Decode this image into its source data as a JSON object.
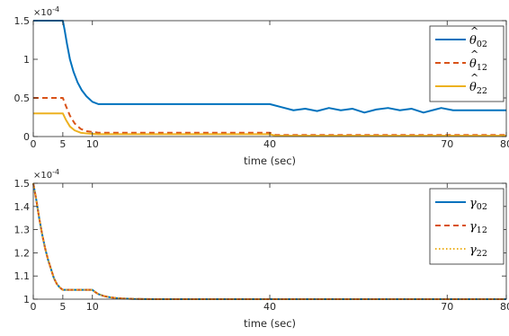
{
  "chart_data": [
    {
      "type": "line",
      "title": "",
      "xlabel": "time (sec)",
      "ylabel": "",
      "xlim": [
        0,
        80
      ],
      "ylim": [
        0,
        1.5
      ],
      "y_multiplier": "×10",
      "y_exponent": "-4",
      "xticks": [
        "0",
        "5",
        "10",
        "40",
        "70",
        "80"
      ],
      "xtick_values": [
        0,
        5,
        10,
        40,
        70,
        80
      ],
      "yticks": [
        "0",
        "0.5",
        "1",
        "1.5"
      ],
      "ytick_values": [
        0,
        0.5,
        1,
        1.5
      ],
      "grid": false,
      "legend_position": "top-right",
      "series": [
        {
          "name_base": "θ",
          "name_hat": "^",
          "name_sub": "02",
          "color": "#0072BD",
          "style": "solid",
          "x": [
            0,
            5,
            5.3,
            5.7,
            6.2,
            6.8,
            7.5,
            8.2,
            9,
            10,
            11,
            40,
            42,
            44,
            46,
            48,
            50,
            52,
            54,
            56,
            58,
            60,
            62,
            64,
            66,
            68,
            69,
            71,
            80
          ],
          "y": [
            1.5,
            1.5,
            1.38,
            1.2,
            1.0,
            0.84,
            0.7,
            0.6,
            0.52,
            0.45,
            0.42,
            0.42,
            0.38,
            0.34,
            0.36,
            0.33,
            0.37,
            0.34,
            0.36,
            0.31,
            0.35,
            0.37,
            0.34,
            0.36,
            0.31,
            0.35,
            0.37,
            0.34,
            0.34
          ]
        },
        {
          "name_base": "θ",
          "name_hat": "^",
          "name_sub": "12",
          "color": "#D95319",
          "style": "dashed",
          "x": [
            0,
            5,
            5.5,
            6.2,
            7,
            8,
            9,
            10,
            11,
            40,
            41,
            80
          ],
          "y": [
            0.5,
            0.5,
            0.4,
            0.27,
            0.17,
            0.1,
            0.07,
            0.06,
            0.05,
            0.05,
            0.02,
            0.02
          ]
        },
        {
          "name_base": "θ",
          "name_hat": "^",
          "name_sub": "22",
          "color": "#EDB120",
          "style": "solid",
          "x": [
            0,
            5,
            5.5,
            6.2,
            7,
            8,
            9,
            10,
            11,
            40,
            41,
            80
          ],
          "y": [
            0.3,
            0.3,
            0.22,
            0.13,
            0.08,
            0.05,
            0.04,
            0.035,
            0.03,
            0.03,
            0.01,
            0.01
          ]
        }
      ]
    },
    {
      "type": "line",
      "title": "",
      "xlabel": "time (sec)",
      "ylabel": "",
      "xlim": [
        0,
        80
      ],
      "ylim": [
        1.0,
        1.5
      ],
      "y_multiplier": "×10",
      "y_exponent": "-4",
      "xticks": [
        "0",
        "5",
        "10",
        "40",
        "70",
        "80"
      ],
      "xtick_values": [
        0,
        5,
        10,
        40,
        70,
        80
      ],
      "yticks": [
        "1",
        "1.1",
        "1.2",
        "1.3",
        "1.4",
        "1.5"
      ],
      "ytick_values": [
        1.0,
        1.1,
        1.2,
        1.3,
        1.4,
        1.5
      ],
      "grid": false,
      "legend_position": "top-right",
      "series": [
        {
          "name_base": "γ",
          "name_hat": "",
          "name_sub": "02",
          "color": "#0072BD",
          "style": "solid",
          "x": [
            0,
            0.5,
            1,
            1.5,
            2,
            2.5,
            3,
            3.5,
            4,
            4.5,
            5,
            10,
            10.5,
            11,
            12,
            13,
            14,
            15,
            17,
            20,
            25,
            80
          ],
          "y": [
            1.5,
            1.43,
            1.35,
            1.28,
            1.22,
            1.17,
            1.13,
            1.09,
            1.065,
            1.05,
            1.04,
            1.04,
            1.03,
            1.022,
            1.013,
            1.008,
            1.005,
            1.003,
            1.001,
            1.0,
            1.0,
            1.0
          ]
        },
        {
          "name_base": "γ",
          "name_hat": "",
          "name_sub": "12",
          "color": "#D95319",
          "style": "dashed",
          "x": [
            0,
            0.5,
            1,
            1.5,
            2,
            2.5,
            3,
            3.5,
            4,
            4.5,
            5,
            10,
            10.5,
            11,
            12,
            13,
            14,
            15,
            17,
            20,
            25,
            80
          ],
          "y": [
            1.5,
            1.43,
            1.35,
            1.28,
            1.22,
            1.17,
            1.13,
            1.09,
            1.065,
            1.05,
            1.04,
            1.04,
            1.03,
            1.022,
            1.013,
            1.008,
            1.005,
            1.003,
            1.001,
            1.0,
            1.0,
            1.0
          ]
        },
        {
          "name_base": "γ",
          "name_hat": "",
          "name_sub": "22",
          "color": "#EDB120",
          "style": "dotted",
          "x": [
            0,
            0.5,
            1,
            1.5,
            2,
            2.5,
            3,
            3.5,
            4,
            4.5,
            5,
            10,
            10.5,
            11,
            12,
            13,
            14,
            15,
            17,
            20,
            25,
            80
          ],
          "y": [
            1.5,
            1.43,
            1.35,
            1.28,
            1.22,
            1.17,
            1.13,
            1.09,
            1.065,
            1.05,
            1.04,
            1.04,
            1.03,
            1.022,
            1.013,
            1.008,
            1.005,
            1.003,
            1.001,
            1.0,
            1.0,
            1.0
          ]
        }
      ]
    }
  ]
}
